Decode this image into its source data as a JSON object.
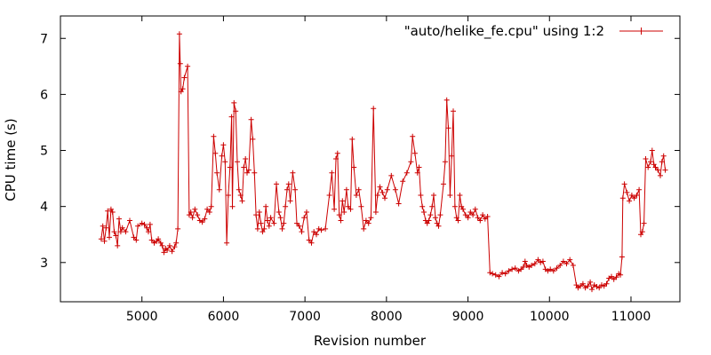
{
  "chart_data": {
    "type": "line",
    "xlabel": "Revision number",
    "ylabel": "CPU time (s)",
    "xlim": [
      4000,
      11600
    ],
    "ylim": [
      2.3,
      7.4
    ],
    "xticks": [
      5000,
      6000,
      7000,
      8000,
      9000,
      10000,
      11000
    ],
    "yticks": [
      3,
      4,
      5,
      6,
      7
    ],
    "xtick_labels": [
      "5000",
      "6000",
      "7000",
      "8000",
      "9000",
      "10000",
      "11000"
    ],
    "ytick_labels": [
      "3",
      "4",
      "5",
      "6",
      "7"
    ],
    "legend_position": "top-right",
    "series": [
      {
        "name": "\"auto/helike_fe.cpu\" using 1:2",
        "color": "#cc0000",
        "marker": "plus",
        "points": [
          [
            4500,
            3.42
          ],
          [
            4520,
            3.65
          ],
          [
            4540,
            3.38
          ],
          [
            4560,
            3.62
          ],
          [
            4580,
            3.92
          ],
          [
            4600,
            3.45
          ],
          [
            4620,
            3.95
          ],
          [
            4640,
            3.9
          ],
          [
            4660,
            3.55
          ],
          [
            4680,
            3.48
          ],
          [
            4700,
            3.3
          ],
          [
            4720,
            3.78
          ],
          [
            4740,
            3.55
          ],
          [
            4760,
            3.62
          ],
          [
            4800,
            3.55
          ],
          [
            4850,
            3.75
          ],
          [
            4900,
            3.45
          ],
          [
            4930,
            3.4
          ],
          [
            4950,
            3.65
          ],
          [
            5000,
            3.7
          ],
          [
            5030,
            3.68
          ],
          [
            5060,
            3.62
          ],
          [
            5080,
            3.55
          ],
          [
            5100,
            3.68
          ],
          [
            5120,
            3.4
          ],
          [
            5150,
            3.35
          ],
          [
            5180,
            3.38
          ],
          [
            5200,
            3.42
          ],
          [
            5230,
            3.35
          ],
          [
            5250,
            3.3
          ],
          [
            5270,
            3.18
          ],
          [
            5290,
            3.25
          ],
          [
            5310,
            3.22
          ],
          [
            5340,
            3.3
          ],
          [
            5370,
            3.2
          ],
          [
            5400,
            3.28
          ],
          [
            5420,
            3.35
          ],
          [
            5440,
            3.6
          ],
          [
            5460,
            7.08
          ],
          [
            5470,
            6.55
          ],
          [
            5480,
            6.05
          ],
          [
            5500,
            6.1
          ],
          [
            5520,
            6.3
          ],
          [
            5560,
            6.5
          ],
          [
            5580,
            3.85
          ],
          [
            5600,
            3.9
          ],
          [
            5620,
            3.8
          ],
          [
            5650,
            3.95
          ],
          [
            5680,
            3.85
          ],
          [
            5710,
            3.75
          ],
          [
            5740,
            3.72
          ],
          [
            5770,
            3.78
          ],
          [
            5800,
            3.95
          ],
          [
            5830,
            3.9
          ],
          [
            5850,
            4.0
          ],
          [
            5880,
            5.25
          ],
          [
            5900,
            4.95
          ],
          [
            5920,
            4.6
          ],
          [
            5950,
            4.3
          ],
          [
            5980,
            4.9
          ],
          [
            6000,
            5.1
          ],
          [
            6020,
            4.8
          ],
          [
            6040,
            3.35
          ],
          [
            6060,
            4.2
          ],
          [
            6080,
            4.7
          ],
          [
            6100,
            5.6
          ],
          [
            6110,
            4.0
          ],
          [
            6130,
            5.85
          ],
          [
            6150,
            5.7
          ],
          [
            6170,
            4.8
          ],
          [
            6190,
            4.3
          ],
          [
            6210,
            4.2
          ],
          [
            6230,
            4.1
          ],
          [
            6250,
            4.7
          ],
          [
            6270,
            4.85
          ],
          [
            6290,
            4.6
          ],
          [
            6310,
            4.65
          ],
          [
            6340,
            5.55
          ],
          [
            6360,
            5.2
          ],
          [
            6380,
            4.6
          ],
          [
            6400,
            3.85
          ],
          [
            6420,
            3.6
          ],
          [
            6440,
            3.9
          ],
          [
            6460,
            3.7
          ],
          [
            6480,
            3.55
          ],
          [
            6500,
            3.6
          ],
          [
            6520,
            4.0
          ],
          [
            6540,
            3.75
          ],
          [
            6560,
            3.65
          ],
          [
            6580,
            3.8
          ],
          [
            6620,
            3.7
          ],
          [
            6650,
            4.4
          ],
          [
            6680,
            3.9
          ],
          [
            6700,
            3.8
          ],
          [
            6720,
            3.6
          ],
          [
            6740,
            3.7
          ],
          [
            6760,
            4.0
          ],
          [
            6780,
            4.3
          ],
          [
            6800,
            4.4
          ],
          [
            6820,
            4.1
          ],
          [
            6850,
            4.6
          ],
          [
            6880,
            4.3
          ],
          [
            6900,
            3.7
          ],
          [
            6930,
            3.65
          ],
          [
            6960,
            3.55
          ],
          [
            6990,
            3.8
          ],
          [
            7020,
            3.9
          ],
          [
            7050,
            3.4
          ],
          [
            7080,
            3.35
          ],
          [
            7110,
            3.55
          ],
          [
            7140,
            3.5
          ],
          [
            7170,
            3.6
          ],
          [
            7200,
            3.58
          ],
          [
            7250,
            3.6
          ],
          [
            7300,
            4.2
          ],
          [
            7330,
            4.6
          ],
          [
            7360,
            3.95
          ],
          [
            7380,
            4.85
          ],
          [
            7400,
            4.95
          ],
          [
            7420,
            3.85
          ],
          [
            7440,
            3.75
          ],
          [
            7460,
            4.1
          ],
          [
            7480,
            3.9
          ],
          [
            7510,
            4.3
          ],
          [
            7530,
            4.0
          ],
          [
            7560,
            3.95
          ],
          [
            7580,
            5.2
          ],
          [
            7600,
            4.7
          ],
          [
            7630,
            4.2
          ],
          [
            7660,
            4.3
          ],
          [
            7690,
            4.0
          ],
          [
            7720,
            3.6
          ],
          [
            7750,
            3.75
          ],
          [
            7780,
            3.7
          ],
          [
            7810,
            3.8
          ],
          [
            7840,
            5.75
          ],
          [
            7870,
            3.9
          ],
          [
            7890,
            4.2
          ],
          [
            7920,
            4.35
          ],
          [
            7950,
            4.25
          ],
          [
            7980,
            4.15
          ],
          [
            8010,
            4.3
          ],
          [
            8060,
            4.55
          ],
          [
            8110,
            4.3
          ],
          [
            8150,
            4.05
          ],
          [
            8200,
            4.45
          ],
          [
            8250,
            4.6
          ],
          [
            8300,
            4.8
          ],
          [
            8320,
            5.25
          ],
          [
            8350,
            4.95
          ],
          [
            8380,
            4.6
          ],
          [
            8400,
            4.7
          ],
          [
            8420,
            4.2
          ],
          [
            8440,
            4.0
          ],
          [
            8460,
            3.9
          ],
          [
            8480,
            3.75
          ],
          [
            8500,
            3.7
          ],
          [
            8520,
            3.75
          ],
          [
            8540,
            3.85
          ],
          [
            8560,
            4.0
          ],
          [
            8580,
            4.2
          ],
          [
            8600,
            3.8
          ],
          [
            8620,
            3.7
          ],
          [
            8640,
            3.65
          ],
          [
            8660,
            3.85
          ],
          [
            8700,
            4.4
          ],
          [
            8720,
            4.8
          ],
          [
            8740,
            5.9
          ],
          [
            8760,
            5.4
          ],
          [
            8780,
            4.2
          ],
          [
            8800,
            4.9
          ],
          [
            8820,
            5.7
          ],
          [
            8840,
            4.0
          ],
          [
            8860,
            3.8
          ],
          [
            8880,
            3.75
          ],
          [
            8900,
            4.2
          ],
          [
            8920,
            4.0
          ],
          [
            8940,
            3.95
          ],
          [
            8970,
            3.85
          ],
          [
            9000,
            3.8
          ],
          [
            9030,
            3.9
          ],
          [
            9060,
            3.85
          ],
          [
            9090,
            3.95
          ],
          [
            9120,
            3.8
          ],
          [
            9150,
            3.75
          ],
          [
            9180,
            3.85
          ],
          [
            9210,
            3.78
          ],
          [
            9240,
            3.82
          ],
          [
            9270,
            2.82
          ],
          [
            9300,
            2.8
          ],
          [
            9340,
            2.78
          ],
          [
            9380,
            2.75
          ],
          [
            9420,
            2.82
          ],
          [
            9460,
            2.8
          ],
          [
            9500,
            2.85
          ],
          [
            9540,
            2.88
          ],
          [
            9580,
            2.9
          ],
          [
            9620,
            2.85
          ],
          [
            9650,
            2.88
          ],
          [
            9680,
            2.92
          ],
          [
            9700,
            3.02
          ],
          [
            9720,
            2.95
          ],
          [
            9750,
            2.92
          ],
          [
            9780,
            2.95
          ],
          [
            9820,
            2.98
          ],
          [
            9860,
            3.05
          ],
          [
            9890,
            3.0
          ],
          [
            9920,
            3.02
          ],
          [
            9950,
            2.88
          ],
          [
            9980,
            2.85
          ],
          [
            10010,
            2.88
          ],
          [
            10050,
            2.85
          ],
          [
            10090,
            2.9
          ],
          [
            10130,
            2.95
          ],
          [
            10170,
            3.02
          ],
          [
            10210,
            2.98
          ],
          [
            10250,
            3.05
          ],
          [
            10290,
            2.95
          ],
          [
            10330,
            2.6
          ],
          [
            10350,
            2.55
          ],
          [
            10380,
            2.58
          ],
          [
            10410,
            2.62
          ],
          [
            10440,
            2.55
          ],
          [
            10470,
            2.58
          ],
          [
            10500,
            2.65
          ],
          [
            10520,
            2.52
          ],
          [
            10550,
            2.6
          ],
          [
            10580,
            2.57
          ],
          [
            10610,
            2.55
          ],
          [
            10640,
            2.6
          ],
          [
            10670,
            2.58
          ],
          [
            10700,
            2.62
          ],
          [
            10730,
            2.72
          ],
          [
            10760,
            2.75
          ],
          [
            10790,
            2.7
          ],
          [
            10820,
            2.74
          ],
          [
            10850,
            2.8
          ],
          [
            10870,
            2.78
          ],
          [
            10890,
            3.1
          ],
          [
            10900,
            4.15
          ],
          [
            10920,
            4.4
          ],
          [
            10950,
            4.25
          ],
          [
            10980,
            4.1
          ],
          [
            11010,
            4.2
          ],
          [
            11040,
            4.15
          ],
          [
            11070,
            4.2
          ],
          [
            11100,
            4.3
          ],
          [
            11120,
            3.5
          ],
          [
            11140,
            3.55
          ],
          [
            11160,
            3.7
          ],
          [
            11180,
            4.85
          ],
          [
            11210,
            4.7
          ],
          [
            11240,
            4.8
          ],
          [
            11260,
            5.0
          ],
          [
            11280,
            4.75
          ],
          [
            11300,
            4.7
          ],
          [
            11330,
            4.65
          ],
          [
            11360,
            4.55
          ],
          [
            11380,
            4.8
          ],
          [
            11400,
            4.9
          ],
          [
            11420,
            4.65
          ]
        ]
      }
    ]
  }
}
